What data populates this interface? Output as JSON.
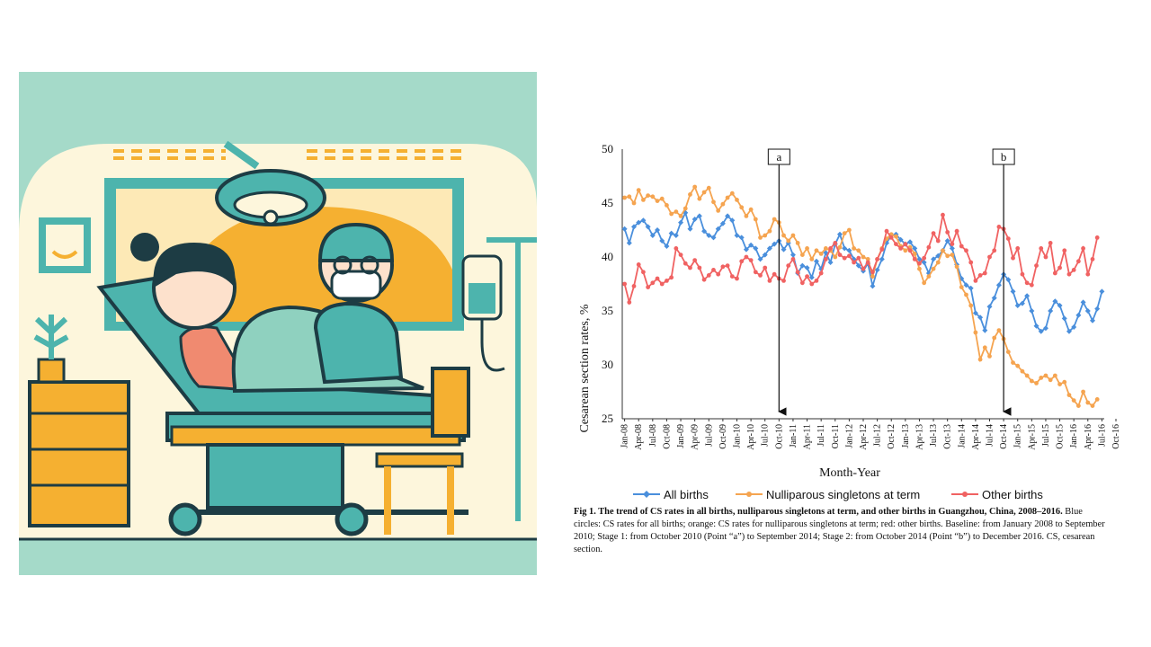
{
  "illustration": {
    "description_icon": "delivery-room-illustration",
    "colors": {
      "background": "#a5dac9",
      "wall": "#fdf6dc",
      "orange": "#f5b031",
      "teal": "#4db4ad",
      "dark": "#1d3c44"
    }
  },
  "chart_data": {
    "type": "line",
    "title": "",
    "xlabel": "Month-Year",
    "ylabel": "Cesarean section rates, %",
    "ylim": [
      25,
      50
    ],
    "yticks": [
      25,
      30,
      35,
      40,
      45,
      50
    ],
    "x_tick_labels": [
      "Jan-08",
      "Apr-08",
      "Jul-08",
      "Oct-08",
      "Jan-09",
      "Apr-09",
      "Jul-09",
      "Oct-09",
      "Jan-10",
      "Apr-10",
      "Jul-10",
      "Oct-10",
      "Jan-11",
      "Apr-11",
      "Jul-11",
      "Oct-11",
      "Jan-12",
      "Apr-12",
      "Jul-12",
      "Oct-12",
      "Jan-13",
      "Apr-13",
      "Jul-13",
      "Oct-13",
      "Jan-14",
      "Apr-14",
      "Jul-14",
      "Oct-14",
      "Jan-15",
      "Apr-15",
      "Jul-15",
      "Oct-15",
      "Jan-16",
      "Apr-16",
      "Jul-16",
      "Oct-16"
    ],
    "annotations": [
      {
        "label": "a",
        "month_index": 33
      },
      {
        "label": "b",
        "month_index": 81
      }
    ],
    "legend_position": "bottom",
    "series": [
      {
        "name": "All births",
        "color": "#4a8fdc",
        "values": [
          42.6,
          41.3,
          42.8,
          43.2,
          43.4,
          42.8,
          42.0,
          42.5,
          41.5,
          41.0,
          42.2,
          42.0,
          43.2,
          44.1,
          42.6,
          43.5,
          43.8,
          42.4,
          42.0,
          41.8,
          42.6,
          43.1,
          43.8,
          43.4,
          42.0,
          41.8,
          40.7,
          41.1,
          40.8,
          39.8,
          40.2,
          40.8,
          41.2,
          41.5,
          40.7,
          41.3,
          40.2,
          38.5,
          39.2,
          39.0,
          38.1,
          39.6,
          38.9,
          40.4,
          39.5,
          41.2,
          42.1,
          40.8,
          40.6,
          39.8,
          39.2,
          38.7,
          39.4,
          37.3,
          38.8,
          39.8,
          41.3,
          42.0,
          42.1,
          41.6,
          41.2,
          41.4,
          40.8,
          39.8,
          39.5,
          38.5,
          39.8,
          40.1,
          40.6,
          41.5,
          40.8,
          39.3,
          38.0,
          37.4,
          37.1,
          34.8,
          34.4,
          33.2,
          35.4,
          36.2,
          37.4,
          38.4,
          37.9,
          36.8,
          35.5,
          35.7,
          36.4,
          35.0,
          33.6,
          33.1,
          33.4,
          35.0,
          35.9,
          35.5,
          34.3,
          33.1,
          33.5,
          34.6,
          35.8,
          35.0,
          34.1,
          35.2,
          36.8
        ]
      },
      {
        "name": "Nulliparous singletons at term",
        "color": "#f5a450",
        "values": [
          45.5,
          45.6,
          45.0,
          46.2,
          45.3,
          45.7,
          45.6,
          45.2,
          45.4,
          44.8,
          44.0,
          44.2,
          43.8,
          44.5,
          45.8,
          46.5,
          45.4,
          46.0,
          46.4,
          45.1,
          44.3,
          44.9,
          45.5,
          45.9,
          45.3,
          44.6,
          43.8,
          44.4,
          43.5,
          41.8,
          42.0,
          42.4,
          43.5,
          43.2,
          42.0,
          41.5,
          42.0,
          41.3,
          40.2,
          40.8,
          39.8,
          40.6,
          40.3,
          40.8,
          40.6,
          40.0,
          40.9,
          42.2,
          42.5,
          40.8,
          40.6,
          40.0,
          39.8,
          38.2,
          39.8,
          40.8,
          41.7,
          42.1,
          41.9,
          41.0,
          40.6,
          40.9,
          40.3,
          38.9,
          37.6,
          38.2,
          38.9,
          39.5,
          40.6,
          40.1,
          40.2,
          39.1,
          37.2,
          36.5,
          35.5,
          33.0,
          30.5,
          31.6,
          30.8,
          32.5,
          33.2,
          32.4,
          31.2,
          30.2,
          29.9,
          29.4,
          29.0,
          28.5,
          28.3,
          28.8,
          29.0,
          28.6,
          29.0,
          28.2,
          28.4,
          27.2,
          26.7,
          26.2,
          27.5,
          26.5,
          26.2,
          26.8
        ]
      },
      {
        "name": "Other births",
        "color": "#f06262",
        "values": [
          37.5,
          35.8,
          37.3,
          39.3,
          38.6,
          37.2,
          37.6,
          38.0,
          37.5,
          37.8,
          38.1,
          40.8,
          40.2,
          39.4,
          39.0,
          39.7,
          39.0,
          37.9,
          38.3,
          38.8,
          38.4,
          39.1,
          39.2,
          38.2,
          38.0,
          39.6,
          40.0,
          39.7,
          38.6,
          38.3,
          39.0,
          37.8,
          38.4,
          38.0,
          37.8,
          39.2,
          39.8,
          38.6,
          37.6,
          38.2,
          37.5,
          37.8,
          38.5,
          39.8,
          40.8,
          41.3,
          40.2,
          39.9,
          40.1,
          39.5,
          39.9,
          38.9,
          39.5,
          38.6,
          39.8,
          40.7,
          42.4,
          41.8,
          41.2,
          40.8,
          41.2,
          40.6,
          39.8,
          39.4,
          39.9,
          40.9,
          42.2,
          41.5,
          43.9,
          42.3,
          41.2,
          42.4,
          41.0,
          40.6,
          39.5,
          37.8,
          38.3,
          38.5,
          40.0,
          40.6,
          42.8,
          42.6,
          41.7,
          39.9,
          40.8,
          38.4,
          37.6,
          37.4,
          39.2,
          40.8,
          40.0,
          41.3,
          38.5,
          39.0,
          40.6,
          38.4,
          38.8,
          39.6,
          40.8,
          38.4,
          39.8,
          41.8
        ]
      }
    ]
  },
  "caption": {
    "bold": "Fig 1.  The trend of CS rates in all births, nulliparous singletons at term, and other births in Guangzhou, China, 2008–2016.",
    "text": " Blue circles: CS rates for all births; orange: CS rates for nulliparous singletons at term; red: other births. Baseline: from January 2008 to September 2010; Stage 1: from October 2010 (Point “a”) to September 2014; Stage 2: from October 2014 (Point “b”) to December 2016. CS, cesarean section."
  }
}
